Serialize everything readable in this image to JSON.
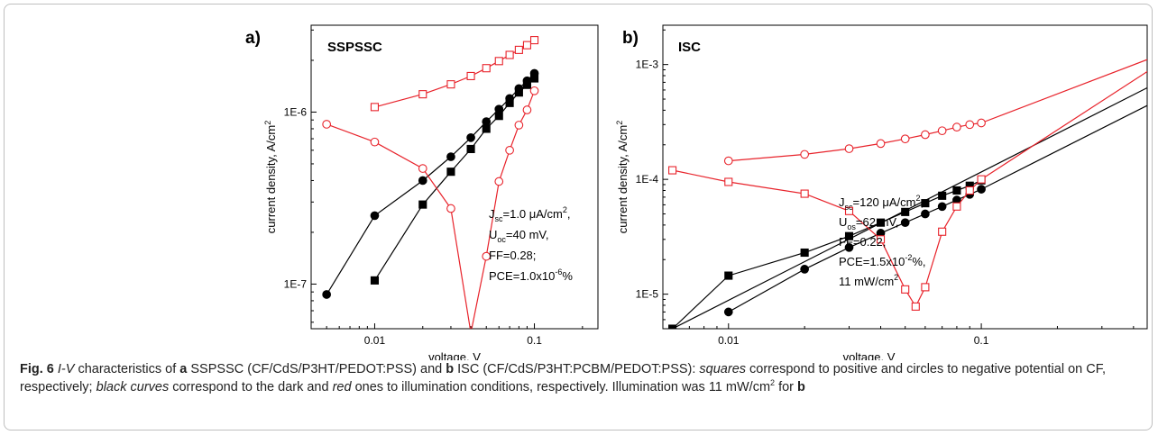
{
  "chart_data": [
    {
      "type": "line",
      "panel": "a)",
      "title": "SSPSSC",
      "xlabel": "voltage, V",
      "ylabel": "current density, A/cm",
      "ylabel_sup": "2",
      "x_scale": "log",
      "y_scale": "log",
      "xlim": [
        0.004,
        0.25
      ],
      "ylim": [
        5.5e-08,
        3.2e-06
      ],
      "x_ticks": [
        {
          "v": 0.01,
          "label": "0.01"
        },
        {
          "v": 0.1,
          "label": "0.1"
        }
      ],
      "y_ticks": [
        {
          "v": 1e-07,
          "label": "1E-7"
        },
        {
          "v": 1e-06,
          "label": "1E-6"
        }
      ],
      "grid": false,
      "series": [
        {
          "marker": "square-filled",
          "color": "#000000",
          "x": [
            0.01,
            0.02,
            0.03,
            0.04,
            0.05,
            0.06,
            0.07,
            0.08,
            0.09,
            0.1
          ],
          "y": [
            1.05e-07,
            2.9e-07,
            4.5e-07,
            6.1e-07,
            8e-07,
            9.5e-07,
            1.13e-06,
            1.3e-06,
            1.44e-06,
            1.57e-06
          ]
        },
        {
          "marker": "circle-filled",
          "color": "#000000",
          "x": [
            0.005,
            0.01,
            0.02,
            0.03,
            0.04,
            0.05,
            0.06,
            0.07,
            0.08,
            0.09,
            0.1
          ],
          "y": [
            8.7e-08,
            2.5e-07,
            4e-07,
            5.5e-07,
            7.1e-07,
            8.8e-07,
            1.04e-06,
            1.2e-06,
            1.37e-06,
            1.52e-06,
            1.68e-06
          ]
        },
        {
          "marker": "square-open",
          "color": "#e8232b",
          "x": [
            0.01,
            0.02,
            0.03,
            0.04,
            0.05,
            0.06,
            0.07,
            0.08,
            0.09,
            0.1
          ],
          "y": [
            1.07e-06,
            1.27e-06,
            1.45e-06,
            1.62e-06,
            1.8e-06,
            1.98e-06,
            2.15e-06,
            2.3e-06,
            2.45e-06,
            2.62e-06
          ]
        },
        {
          "marker": "circle-open",
          "color": "#e8232b",
          "x": [
            0.005,
            0.01,
            0.02,
            0.03,
            0.04,
            0.05,
            0.06,
            0.07,
            0.08,
            0.09,
            0.1
          ],
          "y": [
            8.5e-07,
            6.7e-07,
            4.7e-07,
            2.75e-07,
            5.2e-08,
            1.45e-07,
            3.95e-07,
            6e-07,
            8.4e-07,
            1.03e-06,
            1.33e-06
          ]
        }
      ],
      "annotation": [
        {
          "main": "J",
          "sub": "sc",
          "rest": "=1.0 μA/cm",
          "sup": "2",
          "tail": ","
        },
        {
          "main": "U",
          "sub": "oc",
          "rest": "=40 mV,",
          "sup": "",
          "tail": ""
        },
        {
          "main": "FF=0.28;",
          "sub": "",
          "rest": "",
          "sup": "",
          "tail": ""
        },
        {
          "main": "PCE=1.0x10",
          "sub": "",
          "rest": "",
          "sup": "-6",
          "tail": "%"
        }
      ]
    },
    {
      "type": "line",
      "panel": "b)",
      "title": "ISC",
      "xlabel": "voltage, V",
      "ylabel": "current density, A/cm",
      "ylabel_sup": "2",
      "x_scale": "log",
      "y_scale": "log",
      "xlim": [
        0.0055,
        0.5
      ],
      "ylim": [
        5e-06,
        0.0022
      ],
      "x_ticks": [
        {
          "v": 0.01,
          "label": "0.01"
        },
        {
          "v": 0.1,
          "label": "0.1"
        }
      ],
      "y_ticks": [
        {
          "v": 1e-05,
          "label": "1E-5"
        },
        {
          "v": 0.0001,
          "label": "1E-4"
        },
        {
          "v": 0.001,
          "label": "1E-3"
        }
      ],
      "grid": false,
      "series": [
        {
          "marker": "square-filled",
          "color": "#000000",
          "x": [
            0.006,
            0.01,
            0.02,
            0.03,
            0.04,
            0.05,
            0.06,
            0.07,
            0.08,
            0.09,
            0.1
          ],
          "y": [
            5e-06,
            1.45e-05,
            2.3e-05,
            3.2e-05,
            4.2e-05,
            5.2e-05,
            6.2e-05,
            7.2e-05,
            8e-05,
            8.8e-05,
            9.8e-05
          ],
          "fit_x": [
            0.006,
            0.5
          ],
          "fit_y": [
            5e-06,
            0.0007
          ]
        },
        {
          "marker": "circle-filled",
          "color": "#000000",
          "x": [
            0.01,
            0.02,
            0.03,
            0.04,
            0.05,
            0.06,
            0.07,
            0.08,
            0.09,
            0.1
          ],
          "y": [
            7e-06,
            1.65e-05,
            2.55e-05,
            3.4e-05,
            4.2e-05,
            5e-05,
            5.8e-05,
            6.6e-05,
            7.4e-05,
            8.2e-05
          ],
          "fit_x": [
            0.1,
            0.5
          ],
          "fit_y": [
            8.2e-05,
            0.00049
          ]
        },
        {
          "marker": "circle-open",
          "color": "#e8232b",
          "x": [
            0.01,
            0.02,
            0.03,
            0.04,
            0.05,
            0.06,
            0.07,
            0.08,
            0.09,
            0.1
          ],
          "y": [
            0.000145,
            0.000165,
            0.000185,
            0.000205,
            0.000225,
            0.000245,
            0.000265,
            0.000285,
            0.0003,
            0.00031
          ],
          "fit_x": [
            0.1,
            0.5
          ],
          "fit_y": [
            0.00031,
            0.0012
          ]
        },
        {
          "marker": "square-open",
          "color": "#e8232b",
          "x": [
            0.006,
            0.01,
            0.02,
            0.03,
            0.04,
            0.05,
            0.055,
            0.06,
            0.07,
            0.08,
            0.09,
            0.1
          ],
          "y": [
            0.00012,
            9.5e-05,
            7.5e-05,
            5.3e-05,
            3e-05,
            1.1e-05,
            7.8e-06,
            1.15e-05,
            3.5e-05,
            5.8e-05,
            8e-05,
            0.0001
          ],
          "fit_x": [
            0.1,
            0.5
          ],
          "fit_y": [
            0.0001,
            0.001
          ]
        }
      ],
      "annotation": [
        {
          "main": "J",
          "sub": "sc",
          "rest": "=120  μA/cm",
          "sup": "2",
          "tail": ","
        },
        {
          "main": "U",
          "sub": "os",
          "rest": "=62 mV,",
          "sup": "",
          "tail": ""
        },
        {
          "main": "FF=0.22,",
          "sub": "",
          "rest": "",
          "sup": "",
          "tail": ""
        },
        {
          "main": "PCE=1.5x10",
          "sub": "",
          "rest": "",
          "sup": "-2",
          "tail": "%,"
        },
        {
          "main": "11 mW/cm",
          "sub": "",
          "rest": "",
          "sup": "2",
          "tail": ""
        }
      ]
    }
  ],
  "caption": {
    "fig_label": "Fig. 6",
    "t1": " ",
    "iv": "I-V",
    "t2": " characteristics of ",
    "a": "a",
    "t3": " SSPSSC (CF/CdS/P3HT/PEDOT:PSS) and ",
    "b": "b",
    "t4": " ISC (CF/CdS/P3HT:PCBM/PEDOT:PSS): ",
    "squares": "squares",
    "t5": " correspond to positive and circles to negative potential on CF, respectively; ",
    "black_curves": "black curves",
    "t6": " correspond to the dark and ",
    "red": "red",
    "t7": " ones to illumination conditions, respectively. Illumination was 11 mW/cm",
    "sup": "2",
    "t8": " for ",
    "b2": "b"
  }
}
